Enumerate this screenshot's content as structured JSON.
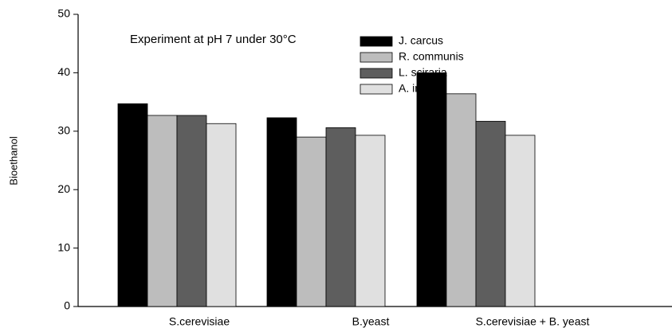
{
  "chart_data": {
    "type": "bar",
    "annotation": "Experiment at pH 7 under 30°C",
    "y_label": "Bioethanol",
    "categories": [
      "S.cerevisiae",
      "B.yeast",
      "S.cerevisiae + B. yeast"
    ],
    "series": [
      {
        "name": "J. carcus",
        "color": "#000000",
        "values": [
          34.7,
          32.3,
          40.0
        ]
      },
      {
        "name": "R. communis",
        "color": "#bdbdbd",
        "values": [
          32.7,
          29.0,
          36.4
        ]
      },
      {
        "name": "L. sciraria",
        "color": "#5e5e5e",
        "values": [
          32.7,
          30.6,
          31.7
        ]
      },
      {
        "name": "A. indica",
        "color": "#e0e0e0",
        "values": [
          31.3,
          29.3,
          29.3
        ]
      }
    ],
    "ylim": [
      0,
      50
    ],
    "yticks": [
      0,
      10,
      20,
      30,
      40,
      50
    ],
    "grid": false,
    "legend": "upper right"
  }
}
